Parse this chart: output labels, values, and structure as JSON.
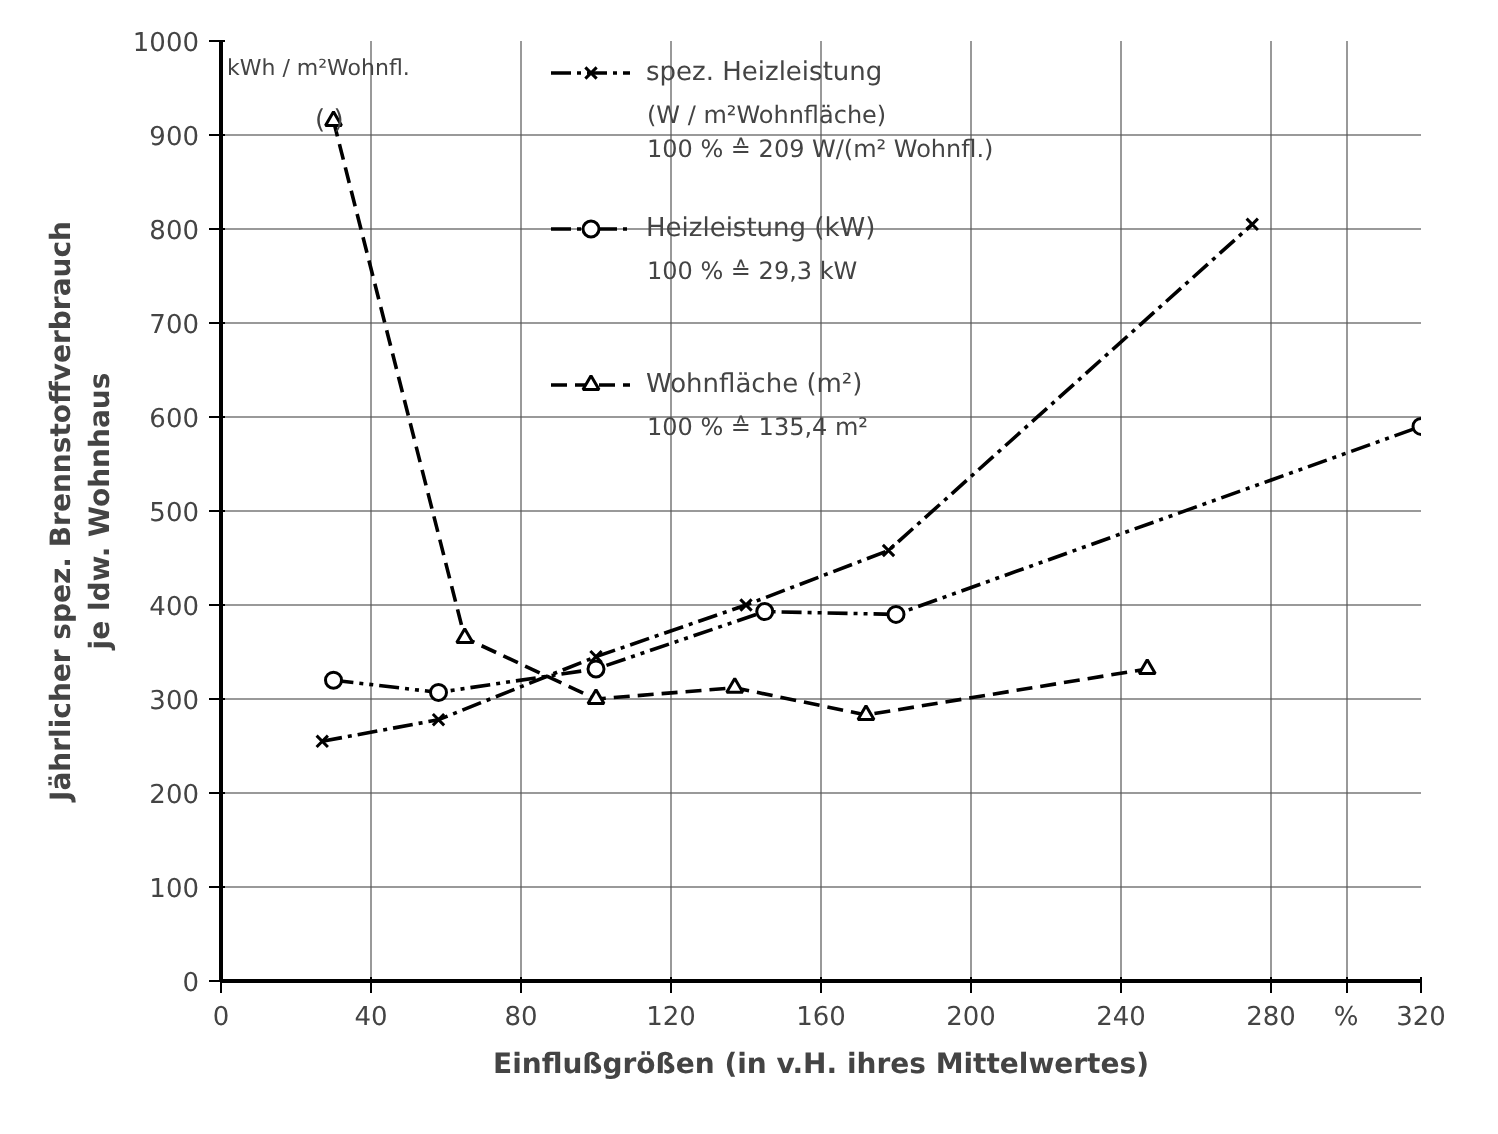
{
  "chart_data": {
    "type": "line",
    "xlabel": "Einflußgrößen (in v.H. ihres Mittelwertes)",
    "ylabel": "Jährlicher spez. Brennstoffverbrauch\nje ldw. Wohnhaus",
    "series": [
      {
        "name": "spez. Heizleistung",
        "color": "#000000",
        "marker": "cross",
        "line_style": "dashdot",
        "x": [
          27,
          58,
          100,
          140,
          178,
          275
        ],
        "values": [
          255,
          278,
          345,
          400,
          458,
          805
        ]
      },
      {
        "name": "Heizleistung (kW)",
        "color": "#000000",
        "marker": "circle",
        "line_style": "dashdotdot",
        "x": [
          30,
          58,
          100,
          145,
          180,
          320
        ],
        "values": [
          320,
          307,
          332,
          393,
          390,
          590
        ]
      },
      {
        "name": "Wohnfläche (m²)",
        "color": "#000000",
        "marker": "triangle",
        "line_style": "dashed",
        "x": [
          30,
          65,
          100,
          137,
          172,
          247
        ],
        "values": [
          915,
          365,
          300,
          312,
          283,
          332
        ]
      }
    ],
    "annotations": [
      "(W / m²Wohnfläche)\n100 % ≙ 209 W/(m² Wohnfl.)",
      "100 % ≙ 29,3 kW",
      "100 % ≙ 135,4 m²",
      "kWh / m²Wohnfl.",
      {
        "text": "(  )",
        "x": 30,
        "y": 915
      }
    ],
    "xlim": [
      0,
      320
    ],
    "ylim": [
      0,
      1000
    ],
    "xticks": [
      0,
      40,
      80,
      120,
      160,
      200,
      240,
      280,
      {
        "value": 300,
        "label": "%"
      },
      320
    ],
    "yticks": [
      0,
      100,
      200,
      300,
      400,
      500,
      600,
      700,
      800,
      900,
      1000
    ],
    "grid": true,
    "legend": "top"
  }
}
